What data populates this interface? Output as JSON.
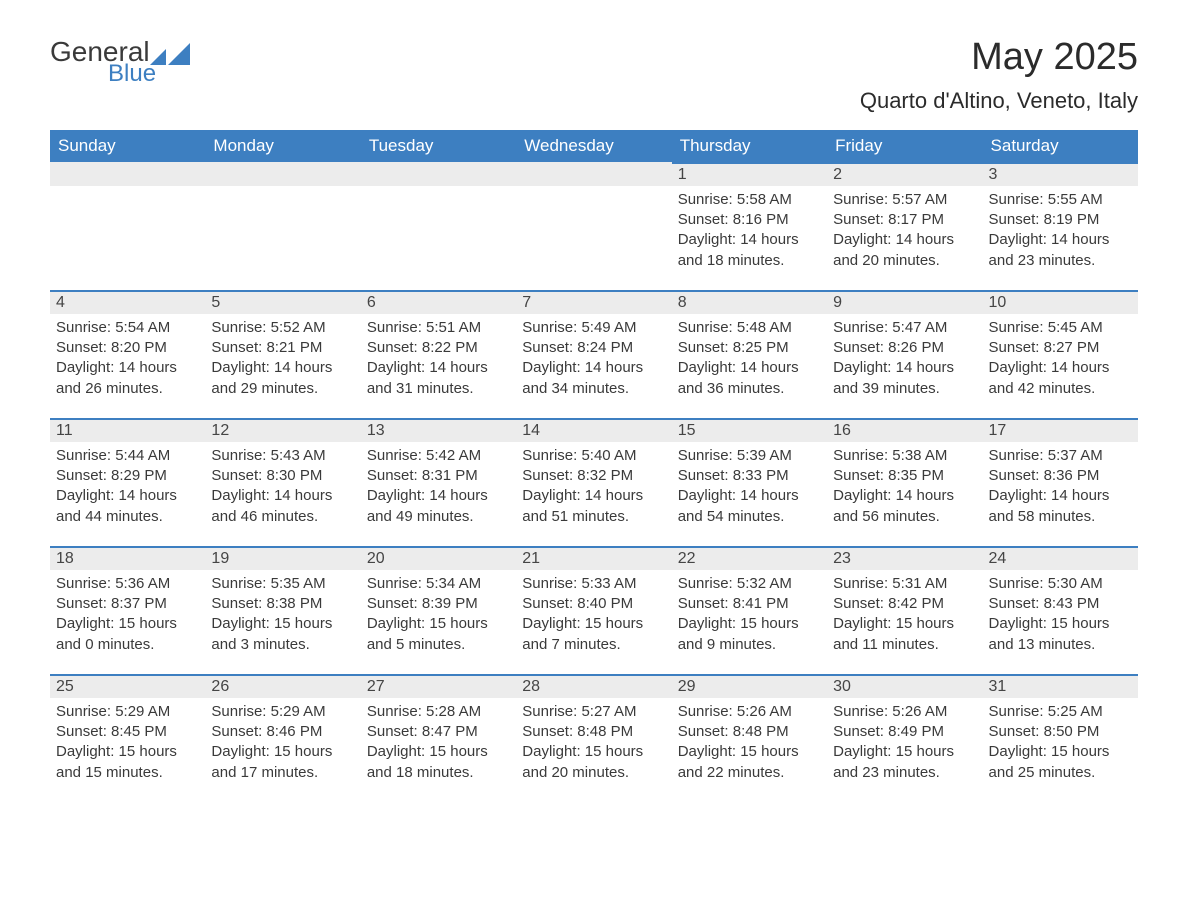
{
  "logo": {
    "primary": "General",
    "secondary": "Blue"
  },
  "title": "May 2025",
  "location": "Quarto d'Altino, Veneto, Italy",
  "colors": {
    "brand_blue": "#3d7fc1",
    "header_text": "#ffffff",
    "day_header_bg": "#ececec",
    "body_text": "#3a3a3a",
    "background": "#ffffff"
  },
  "typography": {
    "title_fontsize": 38,
    "location_fontsize": 22,
    "header_fontsize": 17,
    "daynum_fontsize": 16,
    "detail_fontsize": 15
  },
  "calendar": {
    "type": "table",
    "columns": [
      "Sunday",
      "Monday",
      "Tuesday",
      "Wednesday",
      "Thursday",
      "Friday",
      "Saturday"
    ],
    "weeks": [
      [
        {
          "day": "",
          "sunrise": "",
          "sunset": "",
          "daylight": ""
        },
        {
          "day": "",
          "sunrise": "",
          "sunset": "",
          "daylight": ""
        },
        {
          "day": "",
          "sunrise": "",
          "sunset": "",
          "daylight": ""
        },
        {
          "day": "",
          "sunrise": "",
          "sunset": "",
          "daylight": ""
        },
        {
          "day": "1",
          "sunrise": "Sunrise: 5:58 AM",
          "sunset": "Sunset: 8:16 PM",
          "daylight": "Daylight: 14 hours and 18 minutes."
        },
        {
          "day": "2",
          "sunrise": "Sunrise: 5:57 AM",
          "sunset": "Sunset: 8:17 PM",
          "daylight": "Daylight: 14 hours and 20 minutes."
        },
        {
          "day": "3",
          "sunrise": "Sunrise: 5:55 AM",
          "sunset": "Sunset: 8:19 PM",
          "daylight": "Daylight: 14 hours and 23 minutes."
        }
      ],
      [
        {
          "day": "4",
          "sunrise": "Sunrise: 5:54 AM",
          "sunset": "Sunset: 8:20 PM",
          "daylight": "Daylight: 14 hours and 26 minutes."
        },
        {
          "day": "5",
          "sunrise": "Sunrise: 5:52 AM",
          "sunset": "Sunset: 8:21 PM",
          "daylight": "Daylight: 14 hours and 29 minutes."
        },
        {
          "day": "6",
          "sunrise": "Sunrise: 5:51 AM",
          "sunset": "Sunset: 8:22 PM",
          "daylight": "Daylight: 14 hours and 31 minutes."
        },
        {
          "day": "7",
          "sunrise": "Sunrise: 5:49 AM",
          "sunset": "Sunset: 8:24 PM",
          "daylight": "Daylight: 14 hours and 34 minutes."
        },
        {
          "day": "8",
          "sunrise": "Sunrise: 5:48 AM",
          "sunset": "Sunset: 8:25 PM",
          "daylight": "Daylight: 14 hours and 36 minutes."
        },
        {
          "day": "9",
          "sunrise": "Sunrise: 5:47 AM",
          "sunset": "Sunset: 8:26 PM",
          "daylight": "Daylight: 14 hours and 39 minutes."
        },
        {
          "day": "10",
          "sunrise": "Sunrise: 5:45 AM",
          "sunset": "Sunset: 8:27 PM",
          "daylight": "Daylight: 14 hours and 42 minutes."
        }
      ],
      [
        {
          "day": "11",
          "sunrise": "Sunrise: 5:44 AM",
          "sunset": "Sunset: 8:29 PM",
          "daylight": "Daylight: 14 hours and 44 minutes."
        },
        {
          "day": "12",
          "sunrise": "Sunrise: 5:43 AM",
          "sunset": "Sunset: 8:30 PM",
          "daylight": "Daylight: 14 hours and 46 minutes."
        },
        {
          "day": "13",
          "sunrise": "Sunrise: 5:42 AM",
          "sunset": "Sunset: 8:31 PM",
          "daylight": "Daylight: 14 hours and 49 minutes."
        },
        {
          "day": "14",
          "sunrise": "Sunrise: 5:40 AM",
          "sunset": "Sunset: 8:32 PM",
          "daylight": "Daylight: 14 hours and 51 minutes."
        },
        {
          "day": "15",
          "sunrise": "Sunrise: 5:39 AM",
          "sunset": "Sunset: 8:33 PM",
          "daylight": "Daylight: 14 hours and 54 minutes."
        },
        {
          "day": "16",
          "sunrise": "Sunrise: 5:38 AM",
          "sunset": "Sunset: 8:35 PM",
          "daylight": "Daylight: 14 hours and 56 minutes."
        },
        {
          "day": "17",
          "sunrise": "Sunrise: 5:37 AM",
          "sunset": "Sunset: 8:36 PM",
          "daylight": "Daylight: 14 hours and 58 minutes."
        }
      ],
      [
        {
          "day": "18",
          "sunrise": "Sunrise: 5:36 AM",
          "sunset": "Sunset: 8:37 PM",
          "daylight": "Daylight: 15 hours and 0 minutes."
        },
        {
          "day": "19",
          "sunrise": "Sunrise: 5:35 AM",
          "sunset": "Sunset: 8:38 PM",
          "daylight": "Daylight: 15 hours and 3 minutes."
        },
        {
          "day": "20",
          "sunrise": "Sunrise: 5:34 AM",
          "sunset": "Sunset: 8:39 PM",
          "daylight": "Daylight: 15 hours and 5 minutes."
        },
        {
          "day": "21",
          "sunrise": "Sunrise: 5:33 AM",
          "sunset": "Sunset: 8:40 PM",
          "daylight": "Daylight: 15 hours and 7 minutes."
        },
        {
          "day": "22",
          "sunrise": "Sunrise: 5:32 AM",
          "sunset": "Sunset: 8:41 PM",
          "daylight": "Daylight: 15 hours and 9 minutes."
        },
        {
          "day": "23",
          "sunrise": "Sunrise: 5:31 AM",
          "sunset": "Sunset: 8:42 PM",
          "daylight": "Daylight: 15 hours and 11 minutes."
        },
        {
          "day": "24",
          "sunrise": "Sunrise: 5:30 AM",
          "sunset": "Sunset: 8:43 PM",
          "daylight": "Daylight: 15 hours and 13 minutes."
        }
      ],
      [
        {
          "day": "25",
          "sunrise": "Sunrise: 5:29 AM",
          "sunset": "Sunset: 8:45 PM",
          "daylight": "Daylight: 15 hours and 15 minutes."
        },
        {
          "day": "26",
          "sunrise": "Sunrise: 5:29 AM",
          "sunset": "Sunset: 8:46 PM",
          "daylight": "Daylight: 15 hours and 17 minutes."
        },
        {
          "day": "27",
          "sunrise": "Sunrise: 5:28 AM",
          "sunset": "Sunset: 8:47 PM",
          "daylight": "Daylight: 15 hours and 18 minutes."
        },
        {
          "day": "28",
          "sunrise": "Sunrise: 5:27 AM",
          "sunset": "Sunset: 8:48 PM",
          "daylight": "Daylight: 15 hours and 20 minutes."
        },
        {
          "day": "29",
          "sunrise": "Sunrise: 5:26 AM",
          "sunset": "Sunset: 8:48 PM",
          "daylight": "Daylight: 15 hours and 22 minutes."
        },
        {
          "day": "30",
          "sunrise": "Sunrise: 5:26 AM",
          "sunset": "Sunset: 8:49 PM",
          "daylight": "Daylight: 15 hours and 23 minutes."
        },
        {
          "day": "31",
          "sunrise": "Sunrise: 5:25 AM",
          "sunset": "Sunset: 8:50 PM",
          "daylight": "Daylight: 15 hours and 25 minutes."
        }
      ]
    ]
  }
}
